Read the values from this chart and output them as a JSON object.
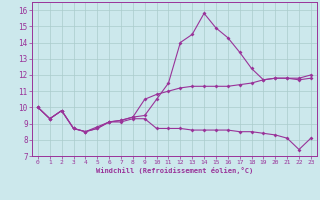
{
  "xlabel": "Windchill (Refroidissement éolien,°C)",
  "background_color": "#cce8ec",
  "grid_color": "#aacccc",
  "line_color": "#993399",
  "xlim": [
    -0.5,
    23.5
  ],
  "ylim": [
    7,
    16.5
  ],
  "yticks": [
    7,
    8,
    9,
    10,
    11,
    12,
    13,
    14,
    15,
    16
  ],
  "xticks": [
    0,
    1,
    2,
    3,
    4,
    5,
    6,
    7,
    8,
    9,
    10,
    11,
    12,
    13,
    14,
    15,
    16,
    17,
    18,
    19,
    20,
    21,
    22,
    23
  ],
  "curve1_x": [
    0,
    1,
    2,
    3,
    4,
    5,
    6,
    7,
    8,
    9,
    10,
    11,
    12,
    13,
    14,
    15,
    16,
    17,
    18,
    19,
    20,
    21,
    22,
    23
  ],
  "curve1_y": [
    10.0,
    9.3,
    9.8,
    8.7,
    8.5,
    8.7,
    9.1,
    9.2,
    9.4,
    9.5,
    10.5,
    11.5,
    14.0,
    14.5,
    15.8,
    14.9,
    14.3,
    13.4,
    12.4,
    11.7,
    11.8,
    11.8,
    11.7,
    11.8
  ],
  "curve2_x": [
    0,
    1,
    2,
    3,
    4,
    5,
    6,
    7,
    8,
    9,
    10,
    11,
    12,
    13,
    14,
    15,
    16,
    17,
    18,
    19,
    20,
    21,
    22,
    23
  ],
  "curve2_y": [
    10.0,
    9.3,
    9.8,
    8.7,
    8.5,
    8.8,
    9.1,
    9.2,
    9.4,
    10.5,
    10.8,
    11.0,
    11.2,
    11.3,
    11.3,
    11.3,
    11.3,
    11.4,
    11.5,
    11.7,
    11.8,
    11.8,
    11.8,
    12.0
  ],
  "curve3_x": [
    0,
    1,
    2,
    3,
    4,
    5,
    6,
    7,
    8,
    9,
    10,
    11,
    12,
    13,
    14,
    15,
    16,
    17,
    18,
    19,
    20,
    21,
    22,
    23
  ],
  "curve3_y": [
    10.0,
    9.3,
    9.8,
    8.7,
    8.5,
    8.7,
    9.1,
    9.1,
    9.3,
    9.3,
    8.7,
    8.7,
    8.7,
    8.6,
    8.6,
    8.6,
    8.6,
    8.5,
    8.5,
    8.4,
    8.3,
    8.1,
    7.4,
    8.1
  ]
}
